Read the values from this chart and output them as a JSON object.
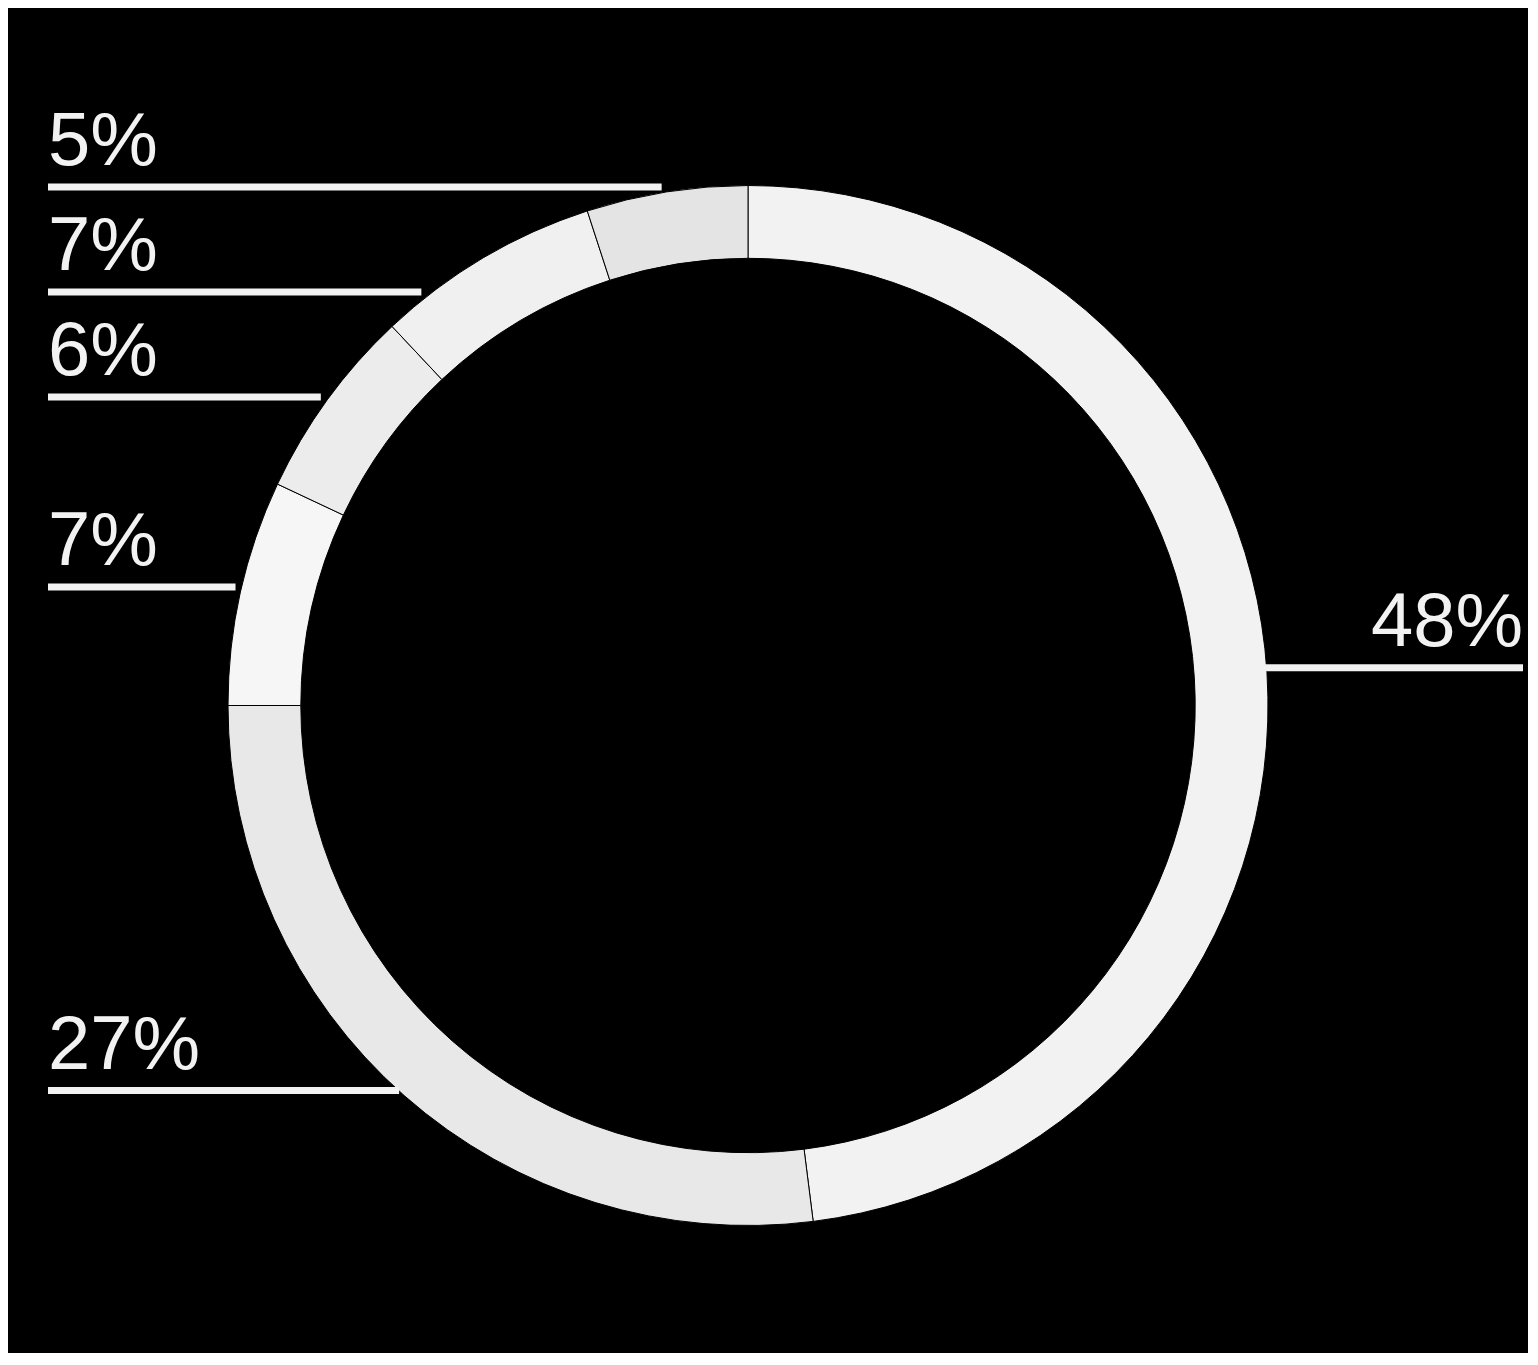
{
  "chart_data": {
    "type": "donut",
    "categories": [
      null,
      null,
      null,
      null,
      null,
      null
    ],
    "values": [
      48,
      27,
      7,
      6,
      7,
      5
    ],
    "value_labels": [
      "48%",
      "27%",
      "7%",
      "6%",
      "7%",
      "5%"
    ],
    "colors": [
      "#f2f2f2",
      "#e8e8e8",
      "#f6f6f6",
      "#ececec",
      "#f0f0f0",
      "#e4e4e4"
    ],
    "legend": false
  }
}
